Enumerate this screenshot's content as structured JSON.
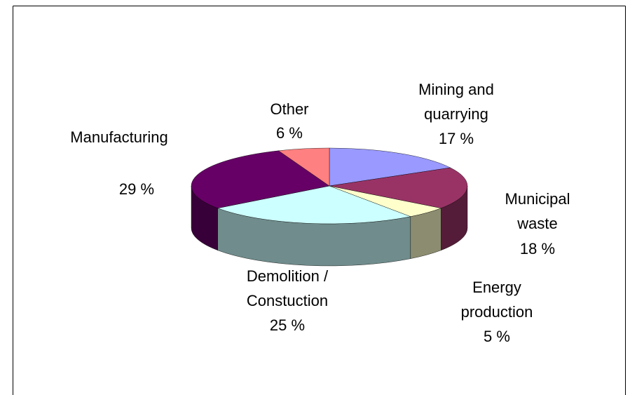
{
  "chart_data": {
    "type": "pie3d",
    "categories": [
      "Mining and quarrying",
      "Municipal waste",
      "Energy production",
      "Demolition / Constuction",
      "Manufacturing",
      "Other"
    ],
    "values": [
      17,
      18,
      5,
      25,
      29,
      6
    ],
    "value_labels": [
      "17 %",
      "18 %",
      "5 %",
      "25 %",
      "29 %",
      "6 %"
    ],
    "colors": [
      "#9999ff",
      "#993366",
      "#ffffcc",
      "#ccffff",
      "#660066",
      "#ff8080"
    ]
  }
}
